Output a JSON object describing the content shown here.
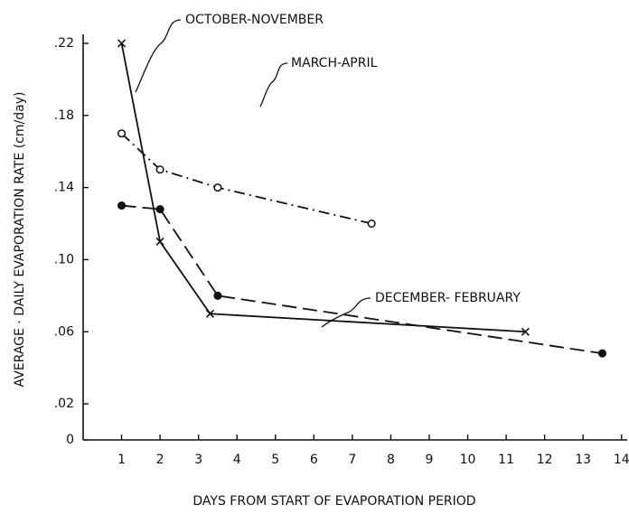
{
  "chart_data": {
    "type": "line",
    "xlabel": "DAYS  FROM   START  OF  EVAPORATION   PERIOD",
    "ylabel": "AVERAGE · DAILY   EVAPORATION   RATE  (cm/day)",
    "xlim": [
      0,
      14.1
    ],
    "xticks": [
      1,
      2,
      3,
      4,
      5,
      6,
      7,
      8,
      9,
      10,
      11,
      12,
      13,
      14
    ],
    "ylim": [
      0,
      0.225
    ],
    "yticks": [
      0,
      {
        "value": 0.02,
        "label": ".02"
      },
      {
        "value": 0.06,
        "label": ".06"
      },
      {
        "value": 0.1,
        "label": ".10"
      },
      {
        "value": 0.14,
        "label": ".14"
      },
      {
        "value": 0.18,
        "label": ".18"
      },
      {
        "value": 0.22,
        "label": ".22"
      }
    ],
    "series": [
      {
        "name": "OCTOBER-NOVEMBER",
        "color": "#111111",
        "marker": "x",
        "line_style": "solid",
        "x": [
          1,
          2,
          3.3,
          11.5
        ],
        "values": [
          0.22,
          0.11,
          0.07,
          0.06
        ]
      },
      {
        "name": "MARCH-APRIL",
        "color": "#111111",
        "marker": "open-circle",
        "line_style": "dash-dot",
        "x": [
          1,
          2,
          3.5,
          7.5
        ],
        "values": [
          0.17,
          0.15,
          0.14,
          0.12
        ]
      },
      {
        "name": "DECEMBER- FEBRUARY",
        "color": "#111111",
        "marker": "filled-circle",
        "line_style": "dashed",
        "x": [
          1,
          2,
          3.5,
          13.5
        ],
        "values": [
          0.13,
          0.128,
          0.08,
          0.048
        ]
      }
    ]
  }
}
